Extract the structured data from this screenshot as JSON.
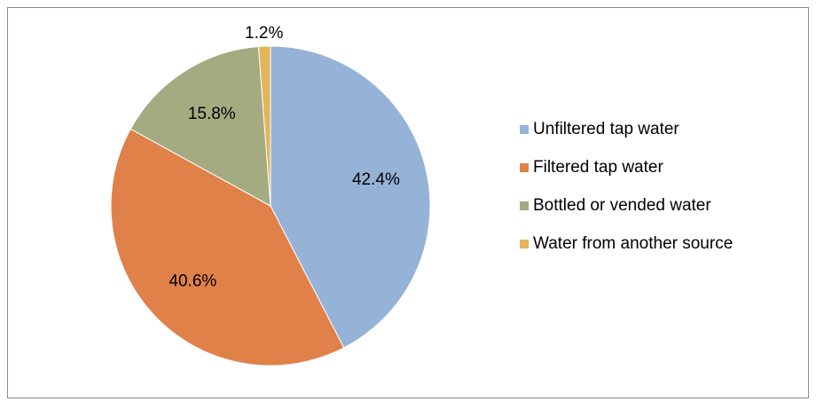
{
  "chart_data": {
    "type": "pie",
    "categories": [
      "Unfiltered tap water",
      "Filtered tap water",
      "Bottled or vended water",
      "Water from another source"
    ],
    "values": [
      42.4,
      40.6,
      15.8,
      1.2
    ],
    "value_labels": [
      "42.4%",
      "40.6%",
      "15.8%",
      "1.2%"
    ],
    "colors": [
      "#95b3d7",
      "#e0814a",
      "#a4ab80",
      "#e3b55a"
    ],
    "legend": "right"
  }
}
